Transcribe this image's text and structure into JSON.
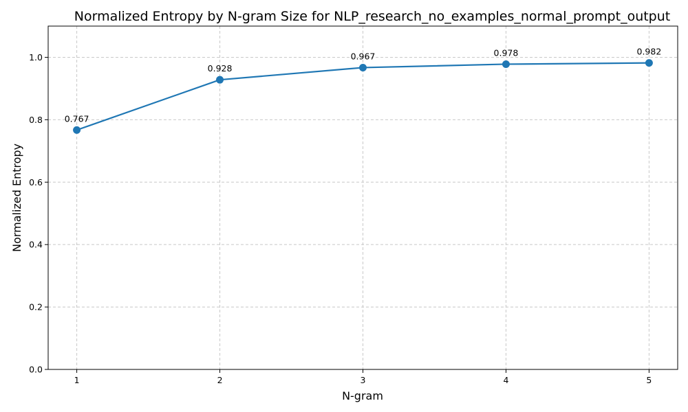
{
  "chart_data": {
    "type": "line",
    "title": "Normalized Entropy by N-gram Size for NLP_research_no_examples_normal_prompt_output",
    "xlabel": "N-gram",
    "ylabel": "Normalized Entropy",
    "categories": [
      "1",
      "2",
      "3",
      "4",
      "5"
    ],
    "x": [
      1,
      2,
      3,
      4,
      5
    ],
    "series": [
      {
        "values": [
          0.767,
          0.928,
          0.967,
          0.978,
          0.982
        ],
        "color": "#1f77b4"
      }
    ],
    "data_labels": [
      "0.767",
      "0.928",
      "0.967",
      "0.978",
      "0.982"
    ],
    "xlim": [
      0.8,
      5.2
    ],
    "ylim": [
      0.0,
      1.1
    ],
    "yticks": [
      0.0,
      0.2,
      0.4,
      0.6,
      0.8,
      1.0
    ],
    "ytick_labels": [
      "0.0",
      "0.2",
      "0.4",
      "0.6",
      "0.8",
      "1.0"
    ],
    "grid": true,
    "marker": "circle"
  }
}
